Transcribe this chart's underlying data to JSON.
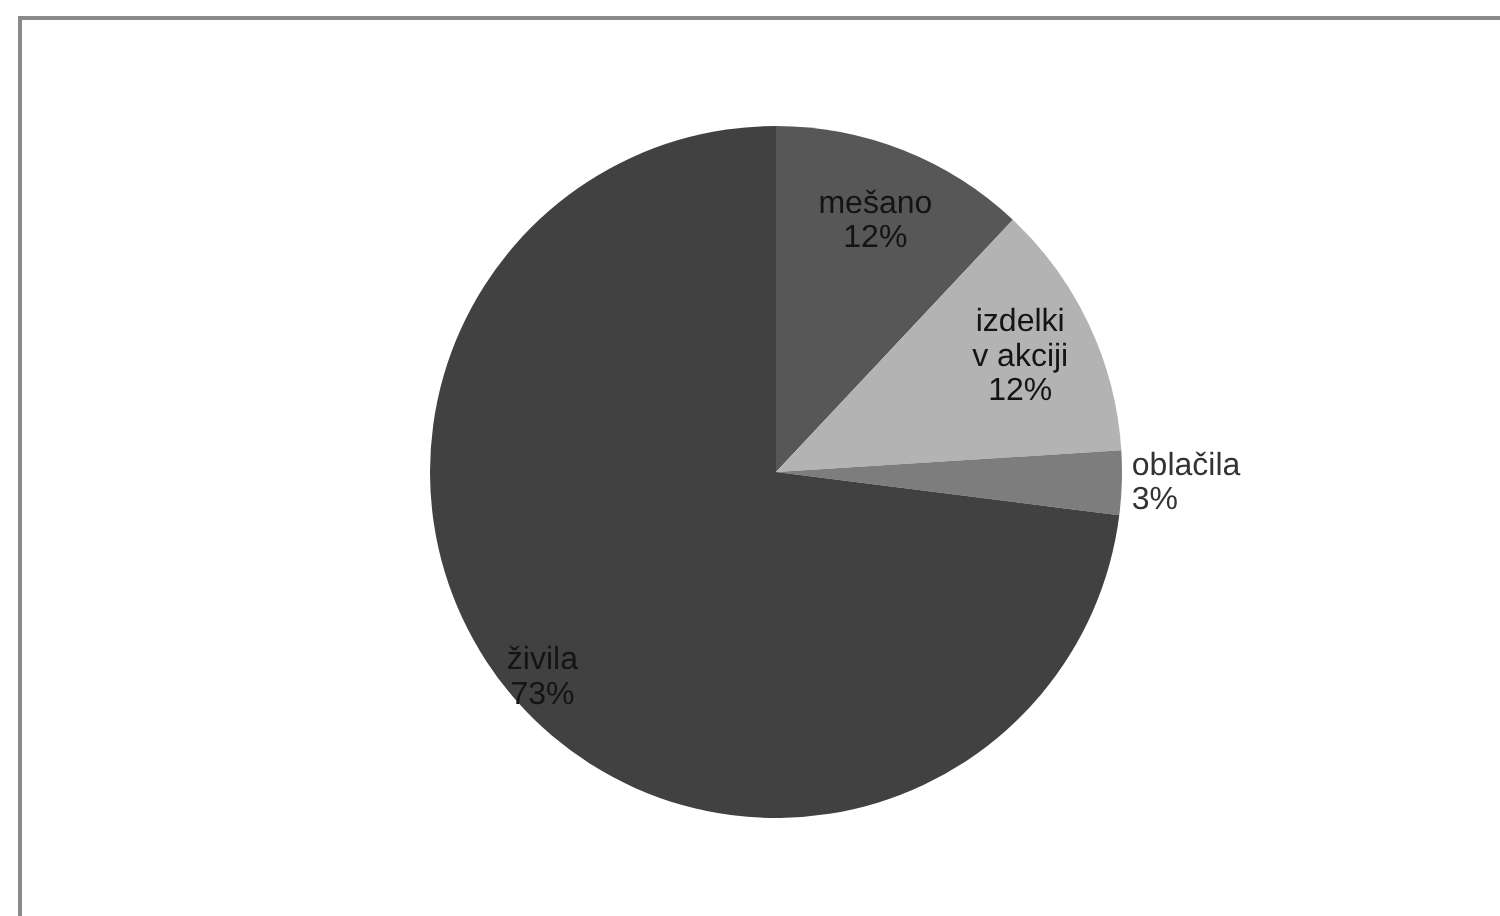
{
  "chart_data": {
    "type": "pie",
    "categories": [
      "mešano",
      "izdelki v akciji",
      "oblačila",
      "živila"
    ],
    "values": [
      12,
      12,
      3,
      73
    ],
    "colors": [
      "#575757",
      "#b3b3b3",
      "#7d7d7d",
      "#414141"
    ],
    "value_labels": [
      "12%",
      "12%",
      "3%",
      "73%"
    ],
    "legend": false
  }
}
